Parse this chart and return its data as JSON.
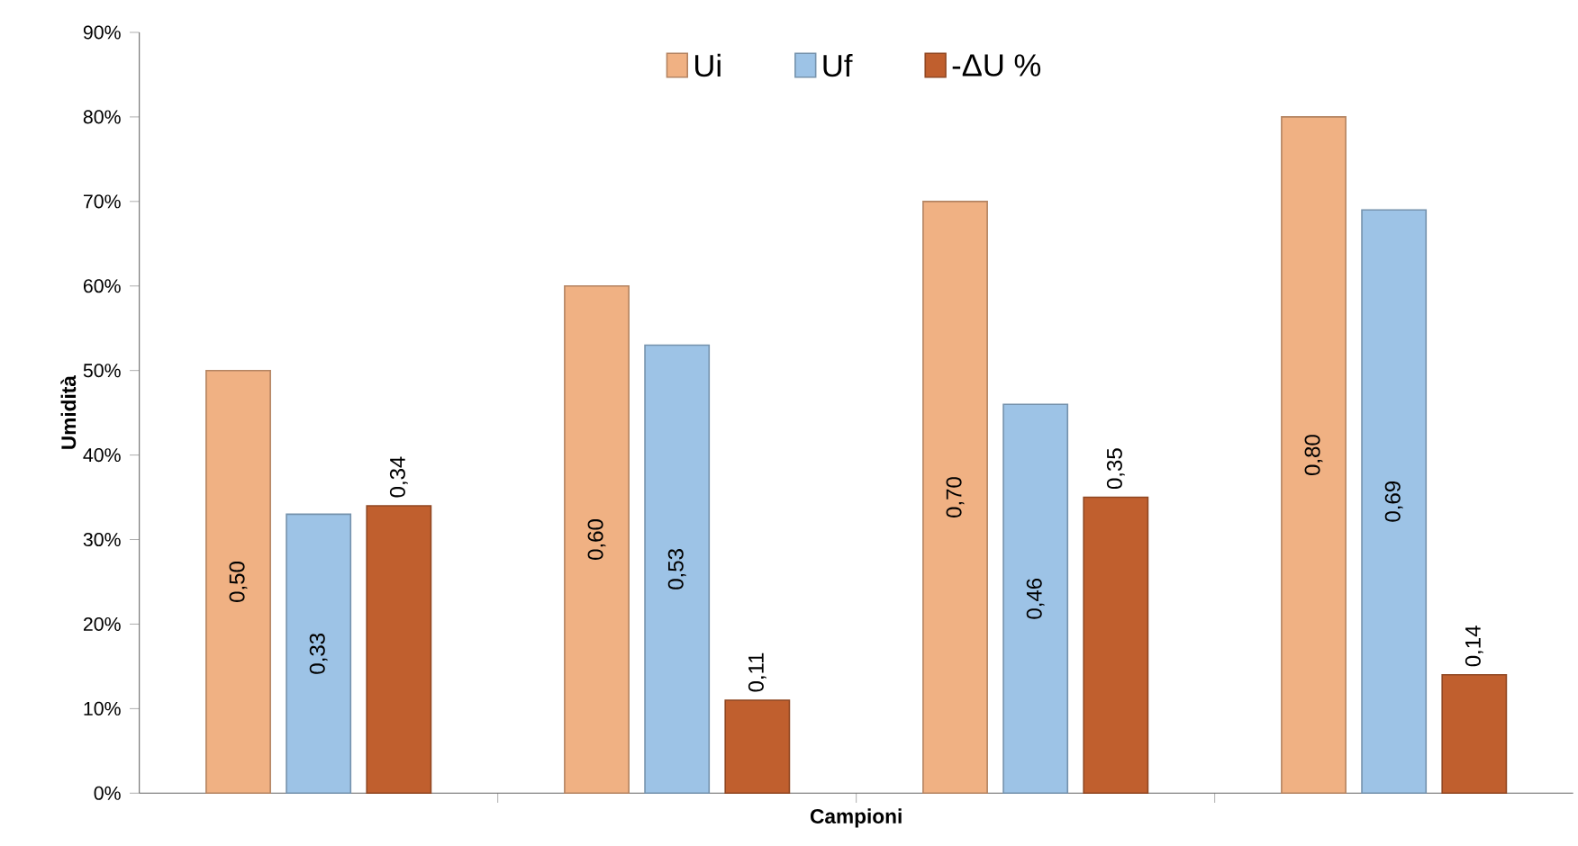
{
  "chart_data": {
    "type": "bar",
    "xlabel": "Campioni",
    "ylabel": "Umidità",
    "categories": [
      null,
      null,
      null,
      null
    ],
    "series": [
      {
        "name": "Ui",
        "color": "#f0b183",
        "values": [
          0.5,
          0.6,
          0.7,
          0.8
        ],
        "value_labels": [
          "0,50",
          "0,60",
          "0,70",
          "0,80"
        ]
      },
      {
        "name": "Uf",
        "color": "#9dc3e6",
        "values": [
          0.33,
          0.53,
          0.46,
          0.69
        ],
        "value_labels": [
          "0,33",
          "0,53",
          "0,46",
          "0,69"
        ]
      },
      {
        "name": "-ΔU %",
        "color": "#c05f2e",
        "values": [
          0.34,
          0.11,
          0.35,
          0.14
        ],
        "value_labels": [
          "0,34",
          "0,11",
          "0,35",
          "0,14"
        ]
      }
    ],
    "ylim": [
      0,
      0.9
    ],
    "yticks": [
      {
        "value": 0,
        "label": "0%"
      },
      {
        "value": 0.1,
        "label": "10%"
      },
      {
        "value": 0.2,
        "label": "20%"
      },
      {
        "value": 0.3,
        "label": "30%"
      },
      {
        "value": 0.4,
        "label": "40%"
      },
      {
        "value": 0.5,
        "label": "50%"
      },
      {
        "value": 0.6,
        "label": "60%"
      },
      {
        "value": 0.7,
        "label": "70%"
      },
      {
        "value": 0.8,
        "label": "80%"
      },
      {
        "value": 0.9,
        "label": "90%"
      }
    ],
    "grid": false,
    "legend": "top"
  }
}
